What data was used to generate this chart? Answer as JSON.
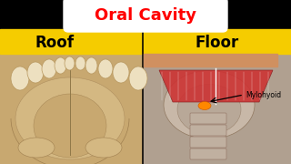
{
  "bg_color": "#000000",
  "title_text": "Oral Cavity",
  "title_color": "#ff0000",
  "title_bg": "#ffffff",
  "title_fontsize": 13,
  "label_left": "Roof",
  "label_right": "Floor",
  "label_bg": "#f5cc00",
  "label_color": "#000000",
  "label_fontsize": 12,
  "annotation_text": "Mylohyoid",
  "annotation_color": "#000000",
  "annotation_fontsize": 5.5,
  "palate_bg": "#c8a870",
  "palate_arch": "#d4b882",
  "palate_center": "#dcc898",
  "tooth_fill": "#ede0c0",
  "tooth_edge": "#b89860",
  "floor_bg": "#b0a090",
  "floor_top_strip": "#d09060",
  "muscle_fill": "#cc3333",
  "muscle_edge": "#882222",
  "muscle_line": "#ffffff",
  "orange_spark": "#ff8800",
  "right_sidebar_color": "#cc5500",
  "vertebrae_fill": "#c0b0a0",
  "vertebrae_edge": "#907060"
}
